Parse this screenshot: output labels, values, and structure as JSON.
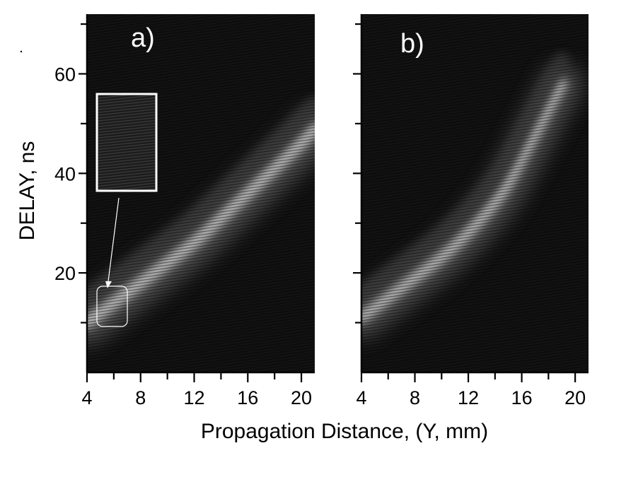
{
  "chart_data": [
    {
      "type": "heatmap",
      "panel_label": "a)",
      "xlabel": "Propagation Distance, (Y, mm)",
      "ylabel": "DELAY, ns",
      "xlim": [
        4,
        21
      ],
      "ylim": [
        0,
        72
      ],
      "x_ticks": [
        4,
        8,
        12,
        16,
        20
      ],
      "y_ticks": [
        20,
        40,
        60
      ],
      "band_ridge": {
        "x": [
          4,
          6,
          8,
          10,
          12,
          14,
          16,
          18,
          20,
          21
        ],
        "y": [
          10,
          14,
          18,
          22,
          26,
          31,
          36,
          41,
          46,
          49
        ]
      },
      "inset_label": "",
      "colors": {
        "background": "#111111",
        "signal": "#e6e6e6",
        "annotation": "#ffffff"
      }
    },
    {
      "type": "heatmap",
      "panel_label": "b)",
      "xlabel": "Propagation Distance, (Y, mm)",
      "ylabel": "DELAY, ns",
      "xlim": [
        4,
        21
      ],
      "ylim": [
        0,
        72
      ],
      "x_ticks": [
        4,
        8,
        12,
        16,
        20
      ],
      "y_ticks": [
        20,
        40,
        60
      ],
      "band_ridge": {
        "x": [
          4,
          6,
          8,
          10,
          12,
          14,
          15,
          16,
          17,
          18,
          19
        ],
        "y": [
          11,
          15,
          19,
          23,
          28,
          34,
          38,
          43,
          48,
          53,
          58
        ]
      },
      "colors": {
        "background": "#111111",
        "signal": "#e6e6e6"
      }
    }
  ]
}
